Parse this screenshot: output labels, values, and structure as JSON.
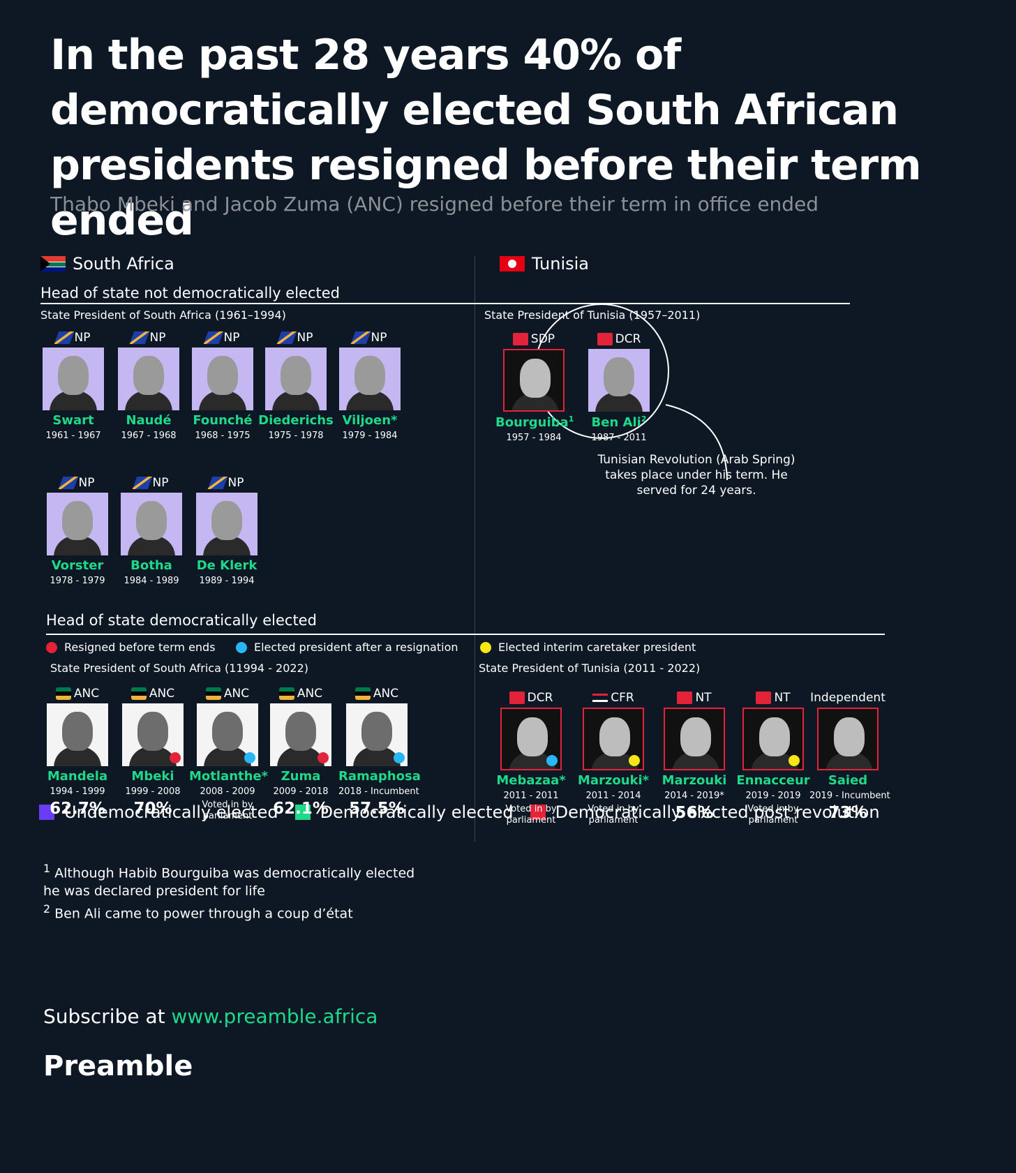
{
  "title": "In the past 28 years 40% of democratically elected South African presidents resigned before their term ended",
  "subtitle": "Thabo Mbeki and Jacob Zuma (ANC) resigned before their term in office ended",
  "countries": {
    "sa": "South Africa",
    "tn": "Tunisia"
  },
  "sections": {
    "not_democratic": "Head of state not democratically elected",
    "democratic": "Head of state democratically elected"
  },
  "subheads": {
    "sa_old": "State President of South Africa (1961–1994)",
    "tn_old": "State President of Tunisia (1957–2011)",
    "sa_new": "State President of South Africa (11994 - 2022)",
    "tn_new": "State President of Tunisia (2011 - 2022)"
  },
  "dot_legend": [
    {
      "label": "Resigned before term ends",
      "color": "#e3233a"
    },
    {
      "label": "Elected president after a resignation",
      "color": "#29b6f6"
    },
    {
      "label": "Elected interim caretaker president",
      "color": "#f5e614"
    }
  ],
  "sa_old": [
    {
      "party": "NP",
      "name": "Swart",
      "years": "1961 - 1967"
    },
    {
      "party": "NP",
      "name": "Naudé",
      "years": "1967 - 1968"
    },
    {
      "party": "NP",
      "name": "Founché",
      "years": "1968 - 1975"
    },
    {
      "party": "NP",
      "name": "Diederichs",
      "years": "1975 - 1978"
    },
    {
      "party": "NP",
      "name": "Viljoen*",
      "years": "1979 - 1984"
    },
    {
      "party": "NP",
      "name": "Vorster",
      "years": "1978 - 1979"
    },
    {
      "party": "NP",
      "name": "Botha",
      "years": "1984 - 1989"
    },
    {
      "party": "NP",
      "name": "De Klerk",
      "years": "1989 - 1994"
    }
  ],
  "tn_old": [
    {
      "party": "SDP",
      "name": "Bourguiba",
      "sup": "1",
      "years": "1957 - 1984"
    },
    {
      "party": "DCR",
      "name": "Ben Ali",
      "sup": "2",
      "years": "1987 - 2011"
    }
  ],
  "callout": "Tunisian Revolution (Arab Spring) takes place under his term. He served for 24 years.",
  "sa_new": [
    {
      "party": "ANC",
      "name": "Mandela",
      "years": "1994 - 1999",
      "note": "",
      "pct": "62.7%"
    },
    {
      "party": "ANC",
      "name": "Mbeki",
      "years": "1999 - 2008",
      "note": "",
      "pct": "70%",
      "dot": "#e3233a"
    },
    {
      "party": "ANC",
      "name": "Motlanthe*",
      "years": "2008 - 2009",
      "note": "Voted in by parliament",
      "pct": "",
      "dot": "#29b6f6"
    },
    {
      "party": "ANC",
      "name": "Zuma",
      "years": "2009 - 2018",
      "note": "",
      "pct": "62.1%",
      "dot": "#e3233a"
    },
    {
      "party": "ANC",
      "name": "Ramaphosa",
      "years": "2018 - Incumbent",
      "note": "",
      "pct": "57.5%",
      "dot": "#29b6f6"
    }
  ],
  "tn_new": [
    {
      "party": "DCR",
      "name": "Mebazaa*",
      "years": "2011 - 2011",
      "note": "Voted in by parliament",
      "pct": "",
      "dot": "#29b6f6"
    },
    {
      "party": "CFR",
      "name": "Marzouki*",
      "years": "2011 - 2014",
      "note": "Voted in by parliament",
      "pct": "",
      "dot": "#f5e614"
    },
    {
      "party": "NT",
      "name": "Marzouki",
      "years": "2014 - 2019*",
      "note": "",
      "pct": "56%"
    },
    {
      "party": "NT",
      "name": "Ennacceur",
      "years": "2019 - 2019",
      "note": "Voted in by parliament",
      "pct": "",
      "dot": "#f5e614"
    },
    {
      "party": "Independent",
      "name": "Saied",
      "years": "2019 - Incumbent",
      "note": "",
      "pct": "73%"
    }
  ],
  "color_legend": [
    {
      "label": "Undemocratically elected",
      "color": "#6a3cf5"
    },
    {
      "label": "Democratically elected",
      "color": "#1ed98a"
    },
    {
      "label": "Democratically elected post revolution",
      "color": "#e3233a"
    }
  ],
  "footnotes": [
    "Although Habib Bourguiba was democratically elected",
    "he was declared president for life",
    "Ben Ali came to power through a coup d’état"
  ],
  "footnote_marks": [
    "1",
    "2"
  ],
  "subscribe": {
    "prefix": "Subscribe at ",
    "url": "www.preamble.africa"
  },
  "brand": "Preamble"
}
